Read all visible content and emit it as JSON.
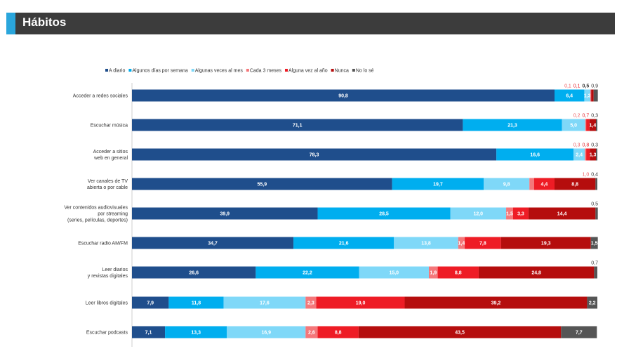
{
  "page": {
    "title": "Hábitos"
  },
  "chart_data": {
    "type": "bar",
    "orientation": "horizontal",
    "stacked": true,
    "xlim": [
      0,
      100
    ],
    "grid": false,
    "legend_position": "top",
    "categories": [
      [
        "Acceder a redes sociales"
      ],
      [
        "Escuchar música"
      ],
      [
        "Acceder a sitios",
        "web en general"
      ],
      [
        "Ver canales de TV",
        "abierta o por cable"
      ],
      [
        "Ver contenidos audiovisuales",
        "por streaming",
        "(series, películas, deportes)"
      ],
      [
        "Escuchar radio AM/FM"
      ],
      [
        "Leer diarios",
        "y revistas digitales"
      ],
      [
        "Leer libros digitales"
      ],
      [
        "Escuchar podcasts"
      ]
    ],
    "series": [
      {
        "name": "A diario",
        "color": "#1f4e8c",
        "values": [
          90.8,
          71.1,
          78.3,
          55.9,
          39.9,
          34.7,
          26.6,
          7.9,
          7.1
        ],
        "labels": [
          "90,8",
          "71,1",
          "78,3",
          "55,9",
          "39,9",
          "34,7",
          "26,6",
          "7,9",
          "7,1"
        ]
      },
      {
        "name": "Algunos días por semana",
        "color": "#00aeef",
        "values": [
          6.4,
          21.3,
          16.6,
          19.7,
          28.5,
          21.6,
          22.2,
          11.8,
          13.3
        ],
        "labels": [
          "6,4",
          "21,3",
          "16,6",
          "19,7",
          "28,5",
          "21,6",
          "22,2",
          "11,8",
          "13,3"
        ]
      },
      {
        "name": "Algunas veces al mes",
        "color": "#7fd8f8",
        "values": [
          1.3,
          5.0,
          2.4,
          9.8,
          12.0,
          13.8,
          15.0,
          17.6,
          16.9
        ],
        "labels": [
          "1,3",
          "5,0",
          "2,4",
          "9,8",
          "12,0",
          "13,8",
          "15,0",
          "17,6",
          "16,9"
        ]
      },
      {
        "name": "Cada 3 meses",
        "color": "#f4777a",
        "values": [
          0.1,
          0.2,
          0.3,
          1.0,
          1.5,
          1.4,
          1.9,
          2.3,
          2.6
        ],
        "labels": [
          "0,1",
          "0,2",
          "0,3",
          "1,0",
          "1,5",
          "1,4",
          "1,9",
          "2,3",
          "2,6"
        ]
      },
      {
        "name": "Alguna vez al año",
        "color": "#ee1c25",
        "values": [
          0.1,
          0.7,
          0.8,
          4.4,
          3.3,
          7.8,
          8.8,
          19.0,
          8.8
        ],
        "labels": [
          "0,1",
          "0,7",
          "0,8",
          "4,4",
          "3,3",
          "7,8",
          "8,8",
          "19,0",
          "8,8"
        ]
      },
      {
        "name": "Nunca",
        "color": "#b50d0d",
        "values": [
          0.5,
          1.4,
          1.3,
          8.8,
          14.4,
          19.3,
          24.8,
          39.2,
          43.5
        ],
        "labels": [
          "0,5",
          "1,4",
          "1,3",
          "8,8",
          "14,4",
          "19,3",
          "24,8",
          "39,2",
          "43,5"
        ]
      },
      {
        "name": "No lo sé",
        "color": "#555555",
        "values": [
          0.9,
          0.3,
          0.3,
          0.4,
          0.5,
          1.5,
          0.7,
          2.2,
          7.7
        ],
        "labels": [
          "0,9",
          "0,3",
          "0,3",
          "0,4",
          "0,5",
          "1,5",
          "0,7",
          "2,2",
          "7,7"
        ]
      }
    ]
  }
}
